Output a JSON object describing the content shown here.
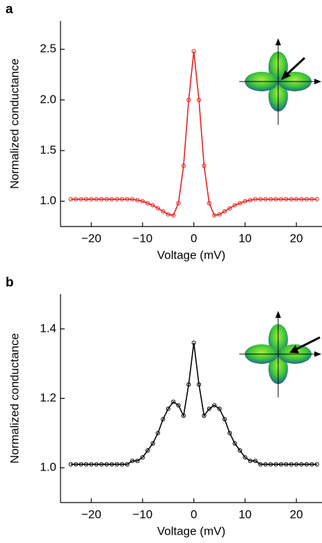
{
  "chart_data": [
    {
      "type": "line",
      "panel_label": "a",
      "x_label": "Voltage (mV)",
      "y_label": "Normalized conductance",
      "x": [
        -24,
        -23,
        -22,
        -21,
        -20,
        -19,
        -18,
        -17,
        -16,
        -15,
        -14,
        -13,
        -12,
        -11,
        -10,
        -9,
        -8,
        -7,
        -6,
        -5,
        -4,
        -3,
        -2,
        -1,
        0,
        1,
        2,
        3,
        4,
        5,
        6,
        7,
        8,
        9,
        10,
        11,
        12,
        13,
        14,
        15,
        16,
        17,
        18,
        19,
        20,
        21,
        22,
        23,
        24
      ],
      "series": [
        {
          "color": "#e8201c",
          "values": [
            1.02,
            1.02,
            1.02,
            1.02,
            1.02,
            1.02,
            1.02,
            1.02,
            1.02,
            1.02,
            1.02,
            1.02,
            1.02,
            1.01,
            1.0,
            0.98,
            0.96,
            0.93,
            0.9,
            0.87,
            0.86,
            0.98,
            1.35,
            2.0,
            2.48,
            2.0,
            1.35,
            0.98,
            0.86,
            0.87,
            0.9,
            0.93,
            0.96,
            0.98,
            1.0,
            1.01,
            1.02,
            1.02,
            1.02,
            1.02,
            1.02,
            1.02,
            1.02,
            1.02,
            1.02,
            1.02,
            1.02,
            1.02,
            1.02
          ]
        }
      ],
      "xlim": [
        -26,
        25
      ],
      "xticks": [
        {
          "value": -20,
          "label": "−20"
        },
        {
          "value": -10,
          "label": "−10"
        },
        0,
        10,
        20
      ],
      "ylim": [
        0.75,
        2.78
      ],
      "yticks": [
        {
          "value": 1,
          "label": "1.0"
        },
        1.5,
        {
          "value": 2,
          "label": "2.0"
        },
        2.5
      ]
    },
    {
      "type": "line",
      "panel_label": "b",
      "x_label": "Voltage (mV)",
      "y_label": "Normalized conductance",
      "x": [
        -24,
        -23,
        -22,
        -21,
        -20,
        -19,
        -18,
        -17,
        -16,
        -15,
        -14,
        -13,
        -12,
        -11,
        -10,
        -9,
        -8,
        -7,
        -6,
        -5,
        -4,
        -3,
        -2,
        -1,
        0,
        1,
        2,
        3,
        4,
        5,
        6,
        7,
        8,
        9,
        10,
        11,
        12,
        13,
        14,
        15,
        16,
        17,
        18,
        19,
        20,
        21,
        22,
        23,
        24
      ],
      "series": [
        {
          "color": "#000000",
          "values": [
            1.01,
            1.01,
            1.01,
            1.01,
            1.01,
            1.01,
            1.01,
            1.01,
            1.01,
            1.01,
            1.01,
            1.01,
            1.02,
            1.02,
            1.03,
            1.05,
            1.07,
            1.1,
            1.14,
            1.17,
            1.19,
            1.18,
            1.15,
            1.24,
            1.36,
            1.24,
            1.15,
            1.17,
            1.18,
            1.17,
            1.14,
            1.1,
            1.07,
            1.05,
            1.03,
            1.02,
            1.02,
            1.01,
            1.01,
            1.01,
            1.01,
            1.01,
            1.01,
            1.01,
            1.01,
            1.01,
            1.01,
            1.01,
            1.01
          ]
        }
      ],
      "xlim": [
        -26,
        25
      ],
      "xticks": [
        {
          "value": -20,
          "label": "−20"
        },
        {
          "value": -10,
          "label": "−10"
        },
        0,
        10,
        20
      ],
      "ylim": [
        0.9,
        1.5
      ],
      "yticks": [
        {
          "value": 1,
          "label": "1.0"
        },
        1.2,
        1.4
      ]
    }
  ]
}
